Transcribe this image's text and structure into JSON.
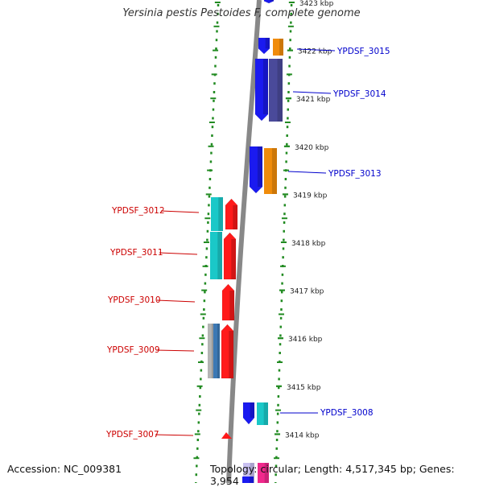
{
  "title": "Yersinia pestis Pestoides F, complete genome",
  "footer": {
    "accession": "Accession: NC_009381",
    "summary": "Topology: circular; Length: 4,517,345 bp; Genes: 3,954"
  },
  "colors": {
    "ruler": "#888888",
    "tick": "#228b22",
    "forward_label": "#0000cc",
    "reverse_label": "#cc0000",
    "blue": "#1a1af0",
    "orange": "#f08c0a",
    "slate": "#4a4a9a",
    "red": "#ff1a1a",
    "cyan": "#1ac8c8",
    "grey": "#b4b4b4",
    "steel": "#3c78b4",
    "lavender": "#c8c0f0",
    "pink": "#f0288c"
  },
  "scale": {
    "ticks": [
      {
        "kbp": 3423,
        "label": "3423 kbp"
      },
      {
        "kbp": 3422,
        "label": "3422 kbp"
      },
      {
        "kbp": 3421,
        "label": "3421 kbp"
      },
      {
        "kbp": 3420,
        "label": "3420 kbp"
      },
      {
        "kbp": 3419,
        "label": "3419 kbp"
      },
      {
        "kbp": 3418,
        "label": "3418 kbp"
      },
      {
        "kbp": 3417,
        "label": "3417 kbp"
      },
      {
        "kbp": 3416,
        "label": "3416 kbp"
      },
      {
        "kbp": 3415,
        "label": "3415 kbp"
      },
      {
        "kbp": 3414,
        "label": "3414 kbp"
      }
    ]
  },
  "genes": [
    {
      "label": "YPDSF_3015",
      "strand": "forward",
      "start_kbp": 3422.2,
      "end_kbp": 3422.55,
      "color": "blue"
    },
    {
      "label": "YPDSF_3014",
      "strand": "forward",
      "start_kbp": 3420.6,
      "end_kbp": 3421.9,
      "color": "blue"
    },
    {
      "label": "YPDSF_3013",
      "strand": "forward",
      "start_kbp": 3418.9,
      "end_kbp": 3419.9,
      "color": "blue"
    },
    {
      "label": "YPDSF_3012",
      "strand": "reverse",
      "start_kbp": 3418.25,
      "end_kbp": 3418.9,
      "color": "red"
    },
    {
      "label": "YPDSF_3011",
      "strand": "reverse",
      "start_kbp": 3417.15,
      "end_kbp": 3418.2,
      "color": "red"
    },
    {
      "label": "YPDSF_3010",
      "strand": "reverse",
      "start_kbp": 3416.35,
      "end_kbp": 3417.1,
      "color": "red"
    },
    {
      "label": "YPDSF_3009",
      "strand": "reverse",
      "start_kbp": 3415.15,
      "end_kbp": 3416.3,
      "color": "red"
    },
    {
      "label": "YPDSF_3008",
      "strand": "forward",
      "start_kbp": 3414.2,
      "end_kbp": 3414.7,
      "color": "blue"
    },
    {
      "label": "YPDSF_3007",
      "strand": "reverse",
      "start_kbp": 3413.95,
      "end_kbp": 3414.05,
      "color": "red"
    }
  ]
}
